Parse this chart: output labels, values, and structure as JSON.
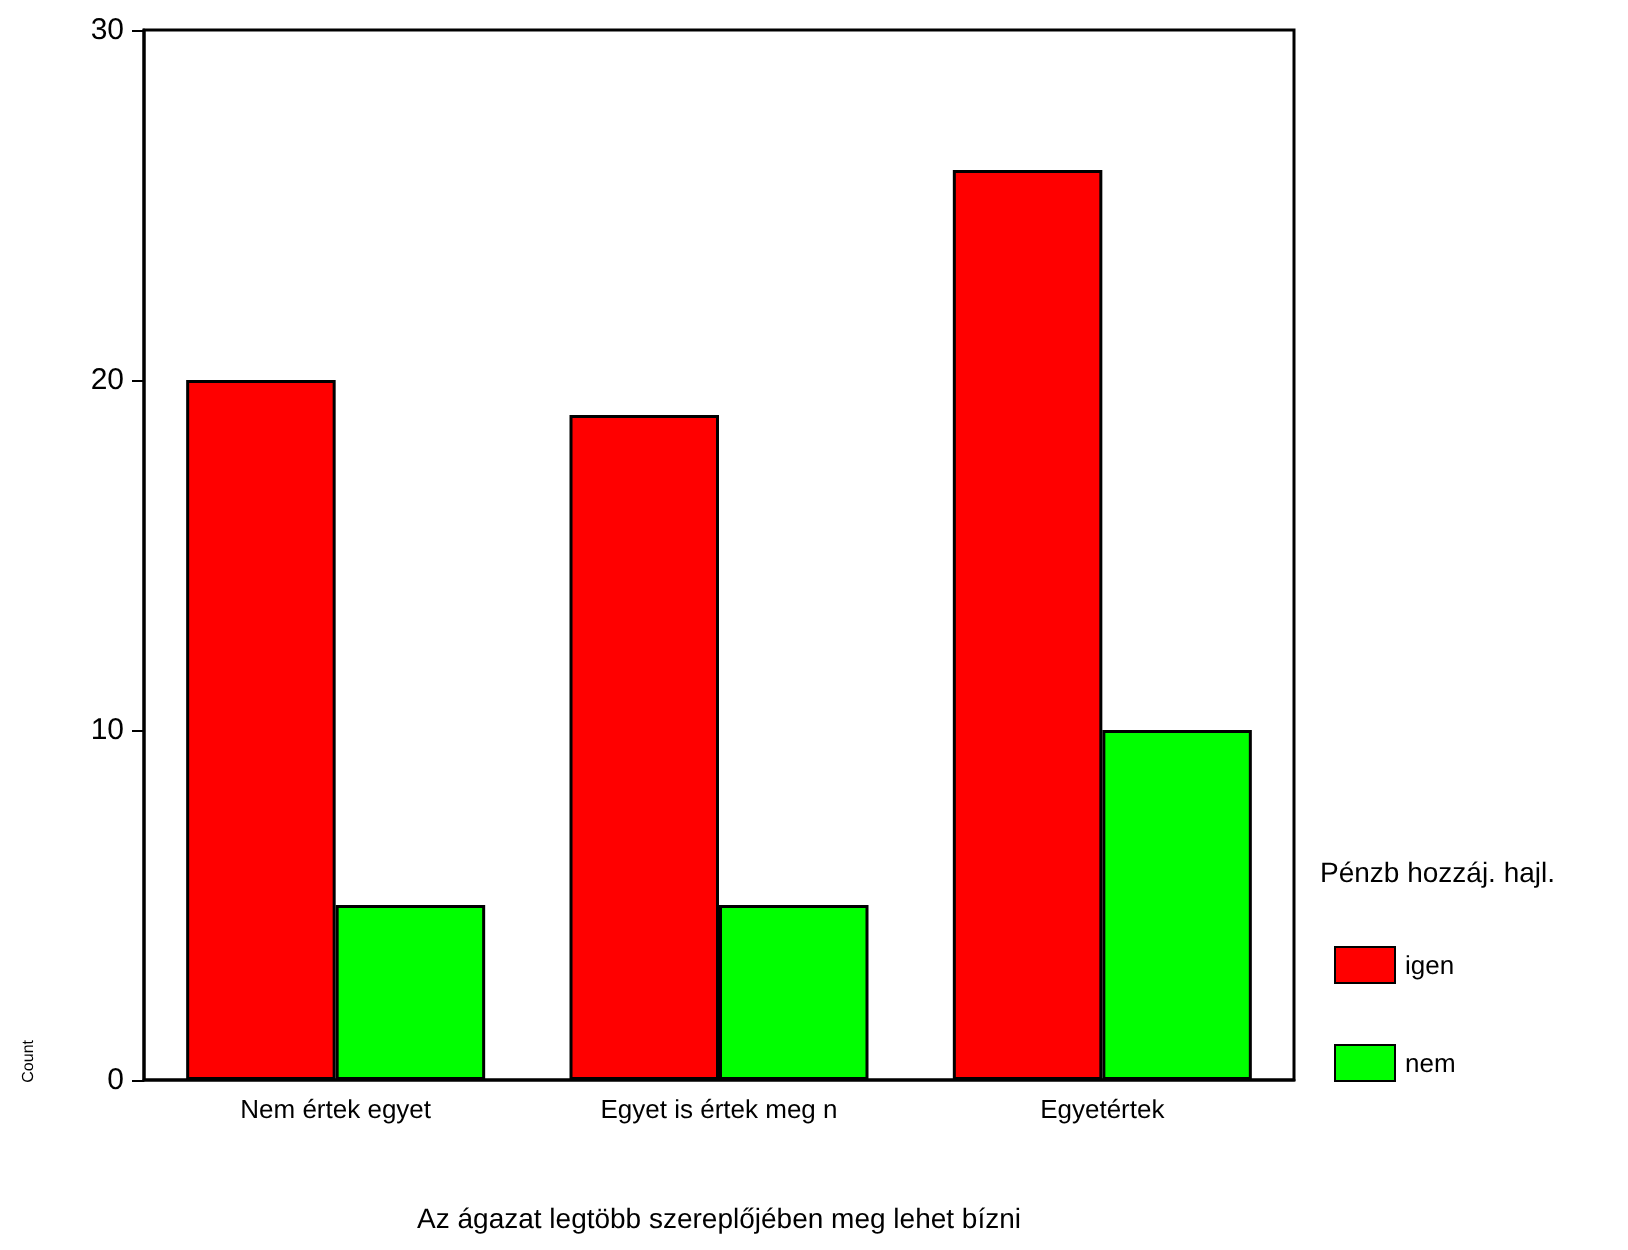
{
  "chart_data": {
    "type": "bar",
    "xlabel": "Az ágazat legtöbb szereplőjében meg lehet bízni",
    "ylabel": "Count",
    "legend_title": "Pénzb hozzáj. hajl.",
    "categories": [
      "Nem értek egyet",
      "Egyet is értek meg n",
      "Egyetértek"
    ],
    "series": [
      {
        "name": "igen",
        "color": "#ff0000",
        "values": [
          20,
          19,
          26
        ]
      },
      {
        "name": "nem",
        "color": "#00ff00",
        "values": [
          5,
          5,
          10
        ]
      }
    ],
    "ylim": [
      0,
      30
    ],
    "yticks": [
      0,
      10,
      20,
      30
    ],
    "grid": false,
    "legend": "right"
  }
}
